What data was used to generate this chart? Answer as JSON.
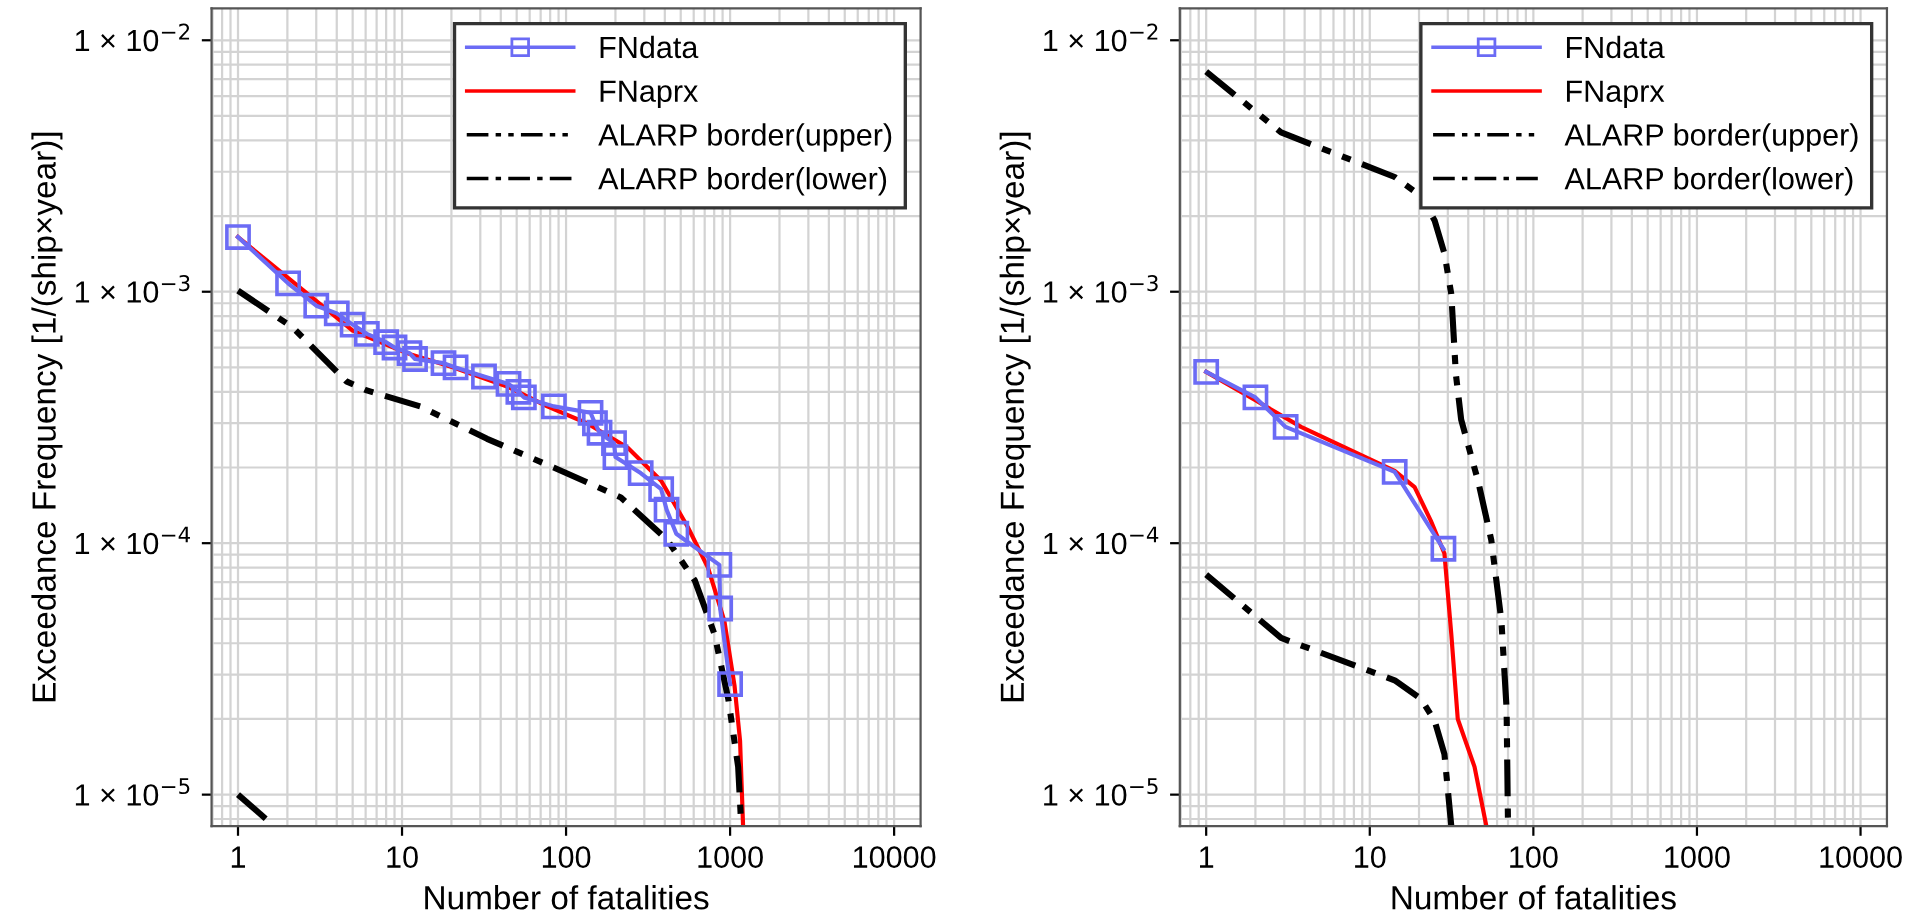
{
  "chart_data": [
    {
      "type": "line",
      "xlabel": "Number of fatalities",
      "ylabel": "Exceedance Frequency [1/(ship×year)]",
      "log": "xy",
      "grid": true,
      "legend": "top right",
      "xlim": [
        0.69,
        14500
      ],
      "xticks": [
        1,
        10,
        100,
        1000,
        10000
      ],
      "ylim": [
        7.5e-06,
        0.0134
      ],
      "yticks": [
        {
          "value": 1e-05,
          "label": "1 × 10$^{−5}$"
        },
        {
          "value": 0.0001,
          "label": "1 × 10$^{−4}$"
        },
        {
          "value": 0.001,
          "label": "1 × 10$^{−3}$"
        },
        {
          "value": 0.01,
          "label": "1 × 10$^{−2}$"
        }
      ],
      "series": [
        {
          "name": "FNdata",
          "color": "#6b6bf5",
          "marker": "square",
          "line_style": "solid",
          "x": [
            1,
            2.02,
            3.0,
            4.0,
            5.0,
            6.1,
            8.0,
            9.0,
            11.1,
            12.0,
            17.9,
            21.2,
            31.6,
            44.6,
            51.2,
            55.3,
            84.3,
            141,
            150,
            160,
            196,
            200,
            285,
            380,
            410,
            470,
            860,
            870,
            1000
          ],
          "values": [
            0.00165,
            0.00108,
            0.00088,
            0.00082,
            0.00074,
            0.00068,
            0.00063,
            0.0006,
            0.00057,
            0.00054,
            0.00052,
            0.0005,
            0.00046,
            0.00043,
            0.0004,
            0.00038,
            0.00035,
            0.00033,
            0.0003,
            0.000275,
            0.00025,
            0.00022,
            0.00019,
            0.000164,
            0.000136,
            0.000109,
            8.2e-05,
            5.5e-05,
            2.75e-05
          ]
        },
        {
          "name": "FNaprx",
          "color": "#ff0000",
          "marker": "none",
          "line_style": "solid",
          "x": [
            1,
            5.0,
            6.2,
            10.7,
            20.6,
            43.7,
            76.8,
            134,
            237,
            380,
            552,
            733,
            923,
            1065,
            1150,
            1200
          ],
          "values": [
            0.00165,
            0.0007,
            0.00066,
            0.00057,
            0.0005,
            0.00042,
            0.00035,
            0.0003,
            0.00024,
            0.000177,
            0.000116,
            8e-05,
            4.9e-05,
            2.7e-05,
            1.64e-05,
            7.5e-06
          ]
        },
        {
          "name": "ALARP border(upper)",
          "color": "#000000",
          "marker": "none",
          "line_style": "dashdotdot",
          "x": [
            1,
            2.16,
            4.58,
            6.1,
            12.9,
            33,
            84,
            216,
            414,
            610,
            803,
            975,
            1120,
            1170
          ],
          "values": [
            0.00101,
            0.00072,
            0.00044,
            0.000405,
            0.00035,
            0.00026,
            0.0002,
            0.000152,
            0.000103,
            7.1e-05,
            4.35e-05,
            2.4e-05,
            1.29e-05,
            7.5e-06
          ]
        },
        {
          "name": "ALARP border(lower)",
          "color": "#000000",
          "marker": "none",
          "line_style": "dashdot",
          "x": [
            1,
            1.66
          ],
          "values": [
            1e-05,
            7.5e-06
          ]
        }
      ]
    },
    {
      "type": "line",
      "xlabel": "Number of fatalities",
      "ylabel": "Exceedance Frequency [1/(ship×year)]",
      "log": "xy",
      "grid": true,
      "legend": "top right",
      "xlim": [
        0.69,
        14500
      ],
      "xticks": [
        1,
        10,
        100,
        1000,
        10000
      ],
      "ylim": [
        7.5e-06,
        0.0134
      ],
      "yticks": [
        {
          "value": 1e-05,
          "label": "1 × 10$^{−5}$"
        },
        {
          "value": 0.0001,
          "label": "1 × 10$^{−4}$"
        },
        {
          "value": 0.001,
          "label": "1 × 10$^{−3}$"
        },
        {
          "value": 0.01,
          "label": "1 × 10$^{−2}$"
        }
      ],
      "series": [
        {
          "name": "FNdata",
          "color": "#6b6bf5",
          "marker": "square",
          "line_style": "solid",
          "x": [
            1,
            2.0,
            3.06,
            14.2,
            28.2
          ],
          "values": [
            0.00048,
            0.00038,
            0.00029,
            0.000192,
            9.5e-05
          ]
        },
        {
          "name": "FNaprx",
          "color": "#ff0000",
          "marker": "none",
          "line_style": "solid",
          "x": [
            1,
            2.0,
            3.8,
            14.2,
            18.8,
            23.6,
            28.6,
            31.5,
            34.5,
            43.7,
            51.6
          ],
          "values": [
            0.00048,
            0.00037,
            0.00029,
            0.000194,
            0.000167,
            0.000123,
            9.1e-05,
            4.35e-05,
            2e-05,
            1.29e-05,
            7.5e-06
          ]
        },
        {
          "name": "ALARP border(upper)",
          "color": "#000000",
          "marker": "none",
          "line_style": "dashdotdot",
          "x": [
            1,
            2.87,
            14.2,
            20.6,
            24.9,
            28.6,
            31.5,
            33.6,
            36.2,
            45.9,
            55.3,
            63.8,
            68.6,
            70
          ],
          "values": [
            0.0075,
            0.0043,
            0.00286,
            0.0024,
            0.00192,
            0.00142,
            0.00098,
            0.00047,
            0.00031,
            0.000177,
            0.000103,
            4.9e-05,
            2.2e-05,
            7.5e-06
          ]
        },
        {
          "name": "ALARP border(lower)",
          "color": "#000000",
          "marker": "none",
          "line_style": "dashdot",
          "x": [
            1,
            2.87,
            14.2,
            20.6,
            24.9,
            28.6,
            31.5
          ],
          "values": [
            7.5e-05,
            4.2e-05,
            2.85e-05,
            2.4e-05,
            1.97e-05,
            1.45e-05,
            7.5e-06
          ]
        }
      ]
    }
  ]
}
